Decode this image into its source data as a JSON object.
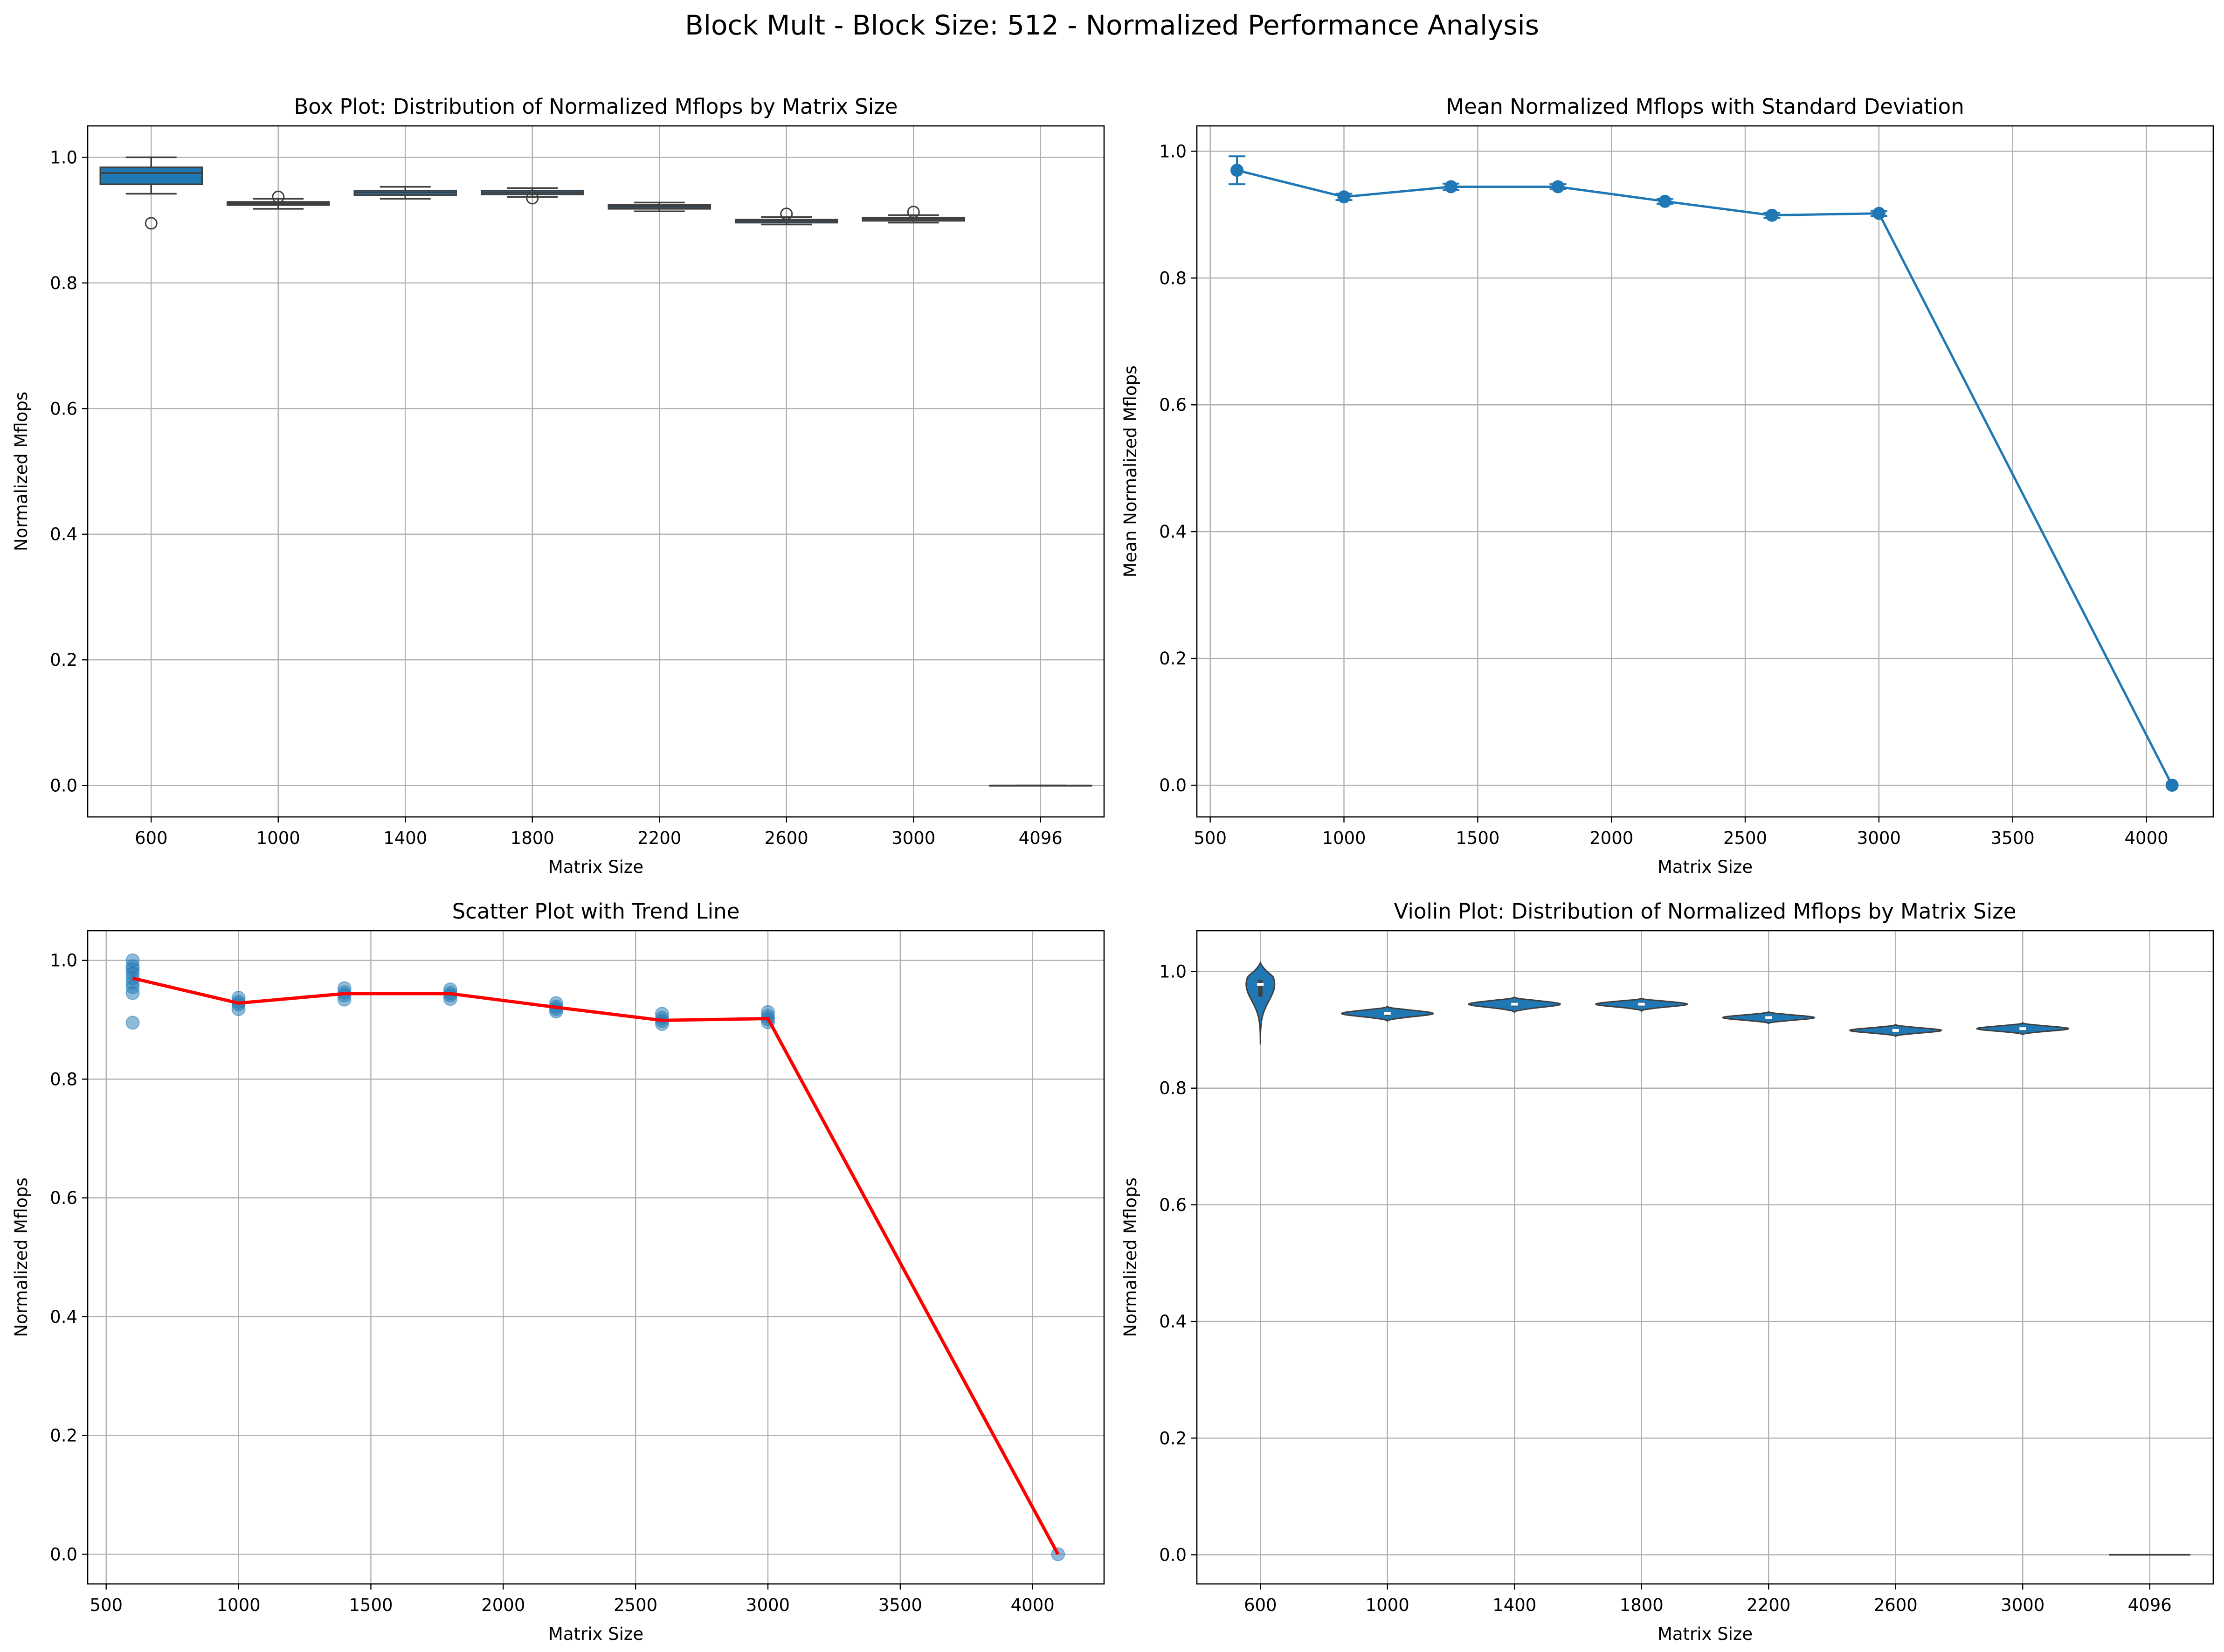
{
  "figure": {
    "suptitle": "Block Mult - Block Size: 512 - Normalized Performance Analysis"
  },
  "chart_data": [
    {
      "type": "box",
      "title": "Box Plot: Distribution of Normalized Mflops by Matrix Size",
      "xlabel": "Matrix Size",
      "ylabel": "Normalized Mflops",
      "categories": [
        "600",
        "1000",
        "1400",
        "1800",
        "2200",
        "2600",
        "3000",
        "4096"
      ],
      "ylim": [
        -0.05,
        1.05
      ],
      "yticks": [
        0.0,
        0.2,
        0.4,
        0.6,
        0.8,
        1.0
      ],
      "ytick_labels": [
        "0.0",
        "0.2",
        "0.4",
        "0.6",
        "0.8",
        "1.0"
      ],
      "grid": true,
      "color": "#1f77b4",
      "boxes": [
        {
          "min": 0.942,
          "q1": 0.957,
          "median": 0.975,
          "q3": 0.984,
          "max": 1.0,
          "outliers": [
            0.895
          ]
        },
        {
          "min": 0.918,
          "q1": 0.924,
          "median": 0.927,
          "q3": 0.929,
          "max": 0.934,
          "outliers": [
            0.937
          ]
        },
        {
          "min": 0.934,
          "q1": 0.94,
          "median": 0.944,
          "q3": 0.947,
          "max": 0.953,
          "outliers": []
        },
        {
          "min": 0.937,
          "q1": 0.941,
          "median": 0.944,
          "q3": 0.947,
          "max": 0.951,
          "outliers": [
            0.935
          ]
        },
        {
          "min": 0.914,
          "q1": 0.918,
          "median": 0.921,
          "q3": 0.924,
          "max": 0.928,
          "outliers": []
        },
        {
          "min": 0.893,
          "q1": 0.896,
          "median": 0.899,
          "q3": 0.901,
          "max": 0.905,
          "outliers": [
            0.91
          ]
        },
        {
          "min": 0.896,
          "q1": 0.899,
          "median": 0.902,
          "q3": 0.904,
          "max": 0.908,
          "outliers": [
            0.913
          ]
        },
        {
          "min": 0.0,
          "q1": 0.0,
          "median": 0.0,
          "q3": 0.0,
          "max": 0.0,
          "outliers": []
        }
      ]
    },
    {
      "type": "line",
      "title": "Mean Normalized Mflops with Standard Deviation",
      "xlabel": "Matrix Size",
      "ylabel": "Mean Normalized Mflops",
      "xlim": [
        450,
        4250
      ],
      "ylim": [
        -0.05,
        1.04
      ],
      "xticks": [
        500,
        1000,
        1500,
        2000,
        2500,
        3000,
        3500,
        4000
      ],
      "xtick_labels": [
        "500",
        "1000",
        "1500",
        "2000",
        "2500",
        "3000",
        "3500",
        "4000"
      ],
      "yticks": [
        0.0,
        0.2,
        0.4,
        0.6,
        0.8,
        1.0
      ],
      "ytick_labels": [
        "0.0",
        "0.2",
        "0.4",
        "0.6",
        "0.8",
        "1.0"
      ],
      "grid": true,
      "color": "#1f77b4",
      "x": [
        600,
        1000,
        1400,
        1800,
        2200,
        2600,
        3000,
        4096
      ],
      "y": [
        0.97,
        0.928,
        0.944,
        0.944,
        0.921,
        0.899,
        0.902,
        0.0
      ],
      "yerr": [
        0.022,
        0.005,
        0.005,
        0.004,
        0.004,
        0.004,
        0.004,
        0.0
      ]
    },
    {
      "type": "scatter",
      "title": "Scatter Plot with Trend Line",
      "xlabel": "Matrix Size",
      "ylabel": "Normalized Mflops",
      "xlim": [
        430,
        4270
      ],
      "ylim": [
        -0.05,
        1.05
      ],
      "xticks": [
        500,
        1000,
        1500,
        2000,
        2500,
        3000,
        3500,
        4000
      ],
      "xtick_labels": [
        "500",
        "1000",
        "1500",
        "2000",
        "2500",
        "3000",
        "3500",
        "4000"
      ],
      "yticks": [
        0.0,
        0.2,
        0.4,
        0.6,
        0.8,
        1.0
      ],
      "ytick_labels": [
        "0.0",
        "0.2",
        "0.4",
        "0.6",
        "0.8",
        "1.0"
      ],
      "grid": true,
      "point_color": "#1f77b4",
      "trend_color": "#ff0000",
      "points": [
        {
          "x": 600,
          "y": 1.0
        },
        {
          "x": 600,
          "y": 0.99
        },
        {
          "x": 600,
          "y": 0.985
        },
        {
          "x": 600,
          "y": 0.978
        },
        {
          "x": 600,
          "y": 0.97
        },
        {
          "x": 600,
          "y": 0.962
        },
        {
          "x": 600,
          "y": 0.955
        },
        {
          "x": 600,
          "y": 0.945
        },
        {
          "x": 600,
          "y": 0.895
        },
        {
          "x": 1000,
          "y": 0.937
        },
        {
          "x": 1000,
          "y": 0.93
        },
        {
          "x": 1000,
          "y": 0.926
        },
        {
          "x": 1000,
          "y": 0.918
        },
        {
          "x": 1400,
          "y": 0.953
        },
        {
          "x": 1400,
          "y": 0.946
        },
        {
          "x": 1400,
          "y": 0.941
        },
        {
          "x": 1400,
          "y": 0.934
        },
        {
          "x": 1800,
          "y": 0.951
        },
        {
          "x": 1800,
          "y": 0.945
        },
        {
          "x": 1800,
          "y": 0.941
        },
        {
          "x": 1800,
          "y": 0.935
        },
        {
          "x": 2200,
          "y": 0.928
        },
        {
          "x": 2200,
          "y": 0.922
        },
        {
          "x": 2200,
          "y": 0.918
        },
        {
          "x": 2200,
          "y": 0.914
        },
        {
          "x": 2600,
          "y": 0.91
        },
        {
          "x": 2600,
          "y": 0.903
        },
        {
          "x": 2600,
          "y": 0.898
        },
        {
          "x": 2600,
          "y": 0.893
        },
        {
          "x": 3000,
          "y": 0.913
        },
        {
          "x": 3000,
          "y": 0.906
        },
        {
          "x": 3000,
          "y": 0.901
        },
        {
          "x": 3000,
          "y": 0.896
        },
        {
          "x": 4096,
          "y": 0.0
        }
      ],
      "trend": {
        "x": [
          600,
          1000,
          1400,
          1800,
          2200,
          2600,
          3000,
          4096
        ],
        "y": [
          0.97,
          0.928,
          0.944,
          0.944,
          0.921,
          0.899,
          0.902,
          0.0
        ]
      }
    },
    {
      "type": "violin",
      "title": "Violin Plot: Distribution of Normalized Mflops by Matrix Size",
      "xlabel": "Matrix Size",
      "ylabel": "Normalized Mflops",
      "categories": [
        "600",
        "1000",
        "1400",
        "1800",
        "2200",
        "2600",
        "3000",
        "4096"
      ],
      "ylim": [
        -0.05,
        1.07
      ],
      "yticks": [
        0.0,
        0.2,
        0.4,
        0.6,
        0.8,
        1.0
      ],
      "ytick_labels": [
        "0.0",
        "0.2",
        "0.4",
        "0.6",
        "0.8",
        "1.0"
      ],
      "grid": true,
      "color": "#1f77b4",
      "violins": [
        {
          "median": 0.978,
          "q1": 0.957,
          "q3": 0.986,
          "lo": 0.875,
          "hi": 1.015,
          "width": 0.28
        },
        {
          "median": 0.928,
          "q1": 0.924,
          "q3": 0.931,
          "lo": 0.915,
          "hi": 0.94,
          "width": 0.9
        },
        {
          "median": 0.944,
          "q1": 0.94,
          "q3": 0.947,
          "lo": 0.93,
          "hi": 0.956,
          "width": 0.9
        },
        {
          "median": 0.944,
          "q1": 0.941,
          "q3": 0.947,
          "lo": 0.932,
          "hi": 0.954,
          "width": 0.9
        },
        {
          "median": 0.921,
          "q1": 0.918,
          "q3": 0.924,
          "lo": 0.911,
          "hi": 0.931,
          "width": 0.9
        },
        {
          "median": 0.899,
          "q1": 0.896,
          "q3": 0.902,
          "lo": 0.889,
          "hi": 0.909,
          "width": 0.9
        },
        {
          "median": 0.902,
          "q1": 0.899,
          "q3": 0.905,
          "lo": 0.892,
          "hi": 0.912,
          "width": 0.9
        },
        {
          "median": 0.0,
          "q1": 0.0,
          "q3": 0.0,
          "lo": 0.0,
          "hi": 0.0,
          "width": 0.8
        }
      ]
    }
  ]
}
